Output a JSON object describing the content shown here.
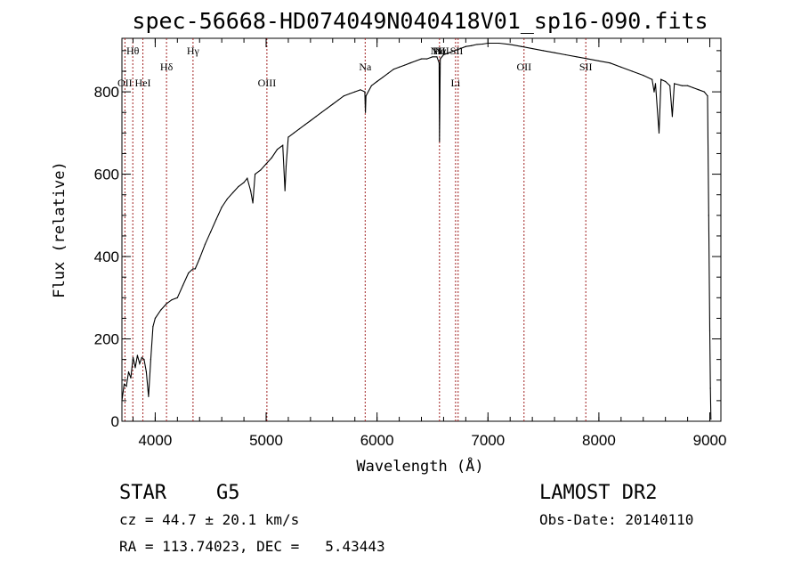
{
  "chart_data": {
    "type": "line",
    "title": "spec-56668-HD074049N040418V01_sp16-090.fits",
    "xlabel": "Wavelength (Å)",
    "ylabel": "Flux (relative)",
    "xlim": [
      3700,
      9100
    ],
    "ylim": [
      0,
      930
    ],
    "xticks": [
      4000,
      5000,
      6000,
      7000,
      8000,
      9000
    ],
    "yticks": [
      0,
      200,
      400,
      600,
      800
    ],
    "grid": false,
    "series": [
      {
        "x": [
          3700,
          3720,
          3740,
          3760,
          3780,
          3800,
          3820,
          3840,
          3860,
          3880,
          3900,
          3920,
          3940,
          3960,
          3980,
          4000,
          4050,
          4100,
          4150,
          4200,
          4250,
          4300,
          4340,
          4360,
          4400,
          4450,
          4500,
          4550,
          4600,
          4650,
          4700,
          4750,
          4800,
          4830,
          4860,
          4880,
          4900,
          4950,
          5000,
          5050,
          5100,
          5150,
          5170,
          5180,
          5200,
          5250,
          5300,
          5350,
          5400,
          5450,
          5500,
          5550,
          5600,
          5650,
          5700,
          5750,
          5800,
          5850,
          5890,
          5895,
          5900,
          5950,
          6000,
          6050,
          6100,
          6150,
          6200,
          6250,
          6300,
          6350,
          6400,
          6450,
          6500,
          6540,
          6560,
          6563,
          6570,
          6600,
          6650,
          6700,
          6750,
          6800,
          6850,
          6900,
          6950,
          7000,
          7100,
          7200,
          7300,
          7400,
          7500,
          7600,
          7700,
          7800,
          7900,
          8000,
          8100,
          8200,
          8300,
          8400,
          8480,
          8498,
          8510,
          8542,
          8560,
          8600,
          8640,
          8662,
          8680,
          8750,
          8800,
          8850,
          8900,
          8950,
          8980,
          8990,
          9000,
          9005,
          9010
        ],
        "values": [
          50,
          90,
          85,
          120,
          105,
          155,
          130,
          160,
          140,
          155,
          150,
          120,
          60,
          150,
          230,
          250,
          270,
          285,
          295,
          300,
          330,
          360,
          370,
          370,
          395,
          430,
          460,
          490,
          520,
          540,
          555,
          570,
          580,
          590,
          560,
          530,
          600,
          610,
          625,
          640,
          660,
          670,
          560,
          620,
          690,
          700,
          710,
          720,
          730,
          740,
          750,
          760,
          770,
          780,
          790,
          795,
          800,
          805,
          800,
          750,
          790,
          815,
          825,
          835,
          845,
          855,
          860,
          865,
          870,
          875,
          880,
          880,
          885,
          885,
          870,
          680,
          880,
          890,
          895,
          900,
          905,
          910,
          912,
          915,
          916,
          918,
          918,
          915,
          910,
          905,
          900,
          895,
          890,
          885,
          880,
          875,
          870,
          860,
          850,
          840,
          830,
          800,
          820,
          700,
          830,
          825,
          815,
          740,
          820,
          815,
          815,
          810,
          805,
          800,
          790,
          500,
          220,
          80,
          5
        ]
      }
    ],
    "annotations": [
      {
        "label": "Hθ",
        "x": 3798,
        "row": 1
      },
      {
        "label": "OII",
        "x": 3727,
        "row": 3
      },
      {
        "label": "HeI",
        "x": 3889,
        "row": 3
      },
      {
        "label": "Hδ",
        "x": 4102,
        "row": 2
      },
      {
        "label": "Hγ",
        "x": 4341,
        "row": 1
      },
      {
        "label": "OIII",
        "x": 5007,
        "row": 3
      },
      {
        "label": "Na",
        "x": 5893,
        "row": 2
      },
      {
        "label": "NII",
        "x": 6548,
        "row": 1
      },
      {
        "label": "Hα",
        "x": 6563,
        "row": 1
      },
      {
        "label": "NII",
        "x": 6584,
        "row": 1
      },
      {
        "label": "SII",
        "x": 6717,
        "row": 1
      },
      {
        "label": "Li",
        "x": 6708,
        "row": 3
      },
      {
        "label": "OII",
        "x": 7325,
        "row": 2
      },
      {
        "label": "SII",
        "x": 7882,
        "row": 2
      }
    ],
    "line_markers": [
      3727,
      3798,
      3889,
      4102,
      4341,
      5007,
      5893,
      6563,
      6708,
      6731,
      7325,
      7882
    ]
  },
  "info": {
    "class": "STAR",
    "subclass": "G5",
    "survey": "LAMOST DR2",
    "cz": "cz = 44.7 ± 20.1 km/s",
    "obs_date": "Obs-Date: 20140110",
    "radec": "RA = 113.74023, DEC =   5.43443"
  },
  "colors": {
    "spectrum": "#000000",
    "marker": "#a02020"
  }
}
